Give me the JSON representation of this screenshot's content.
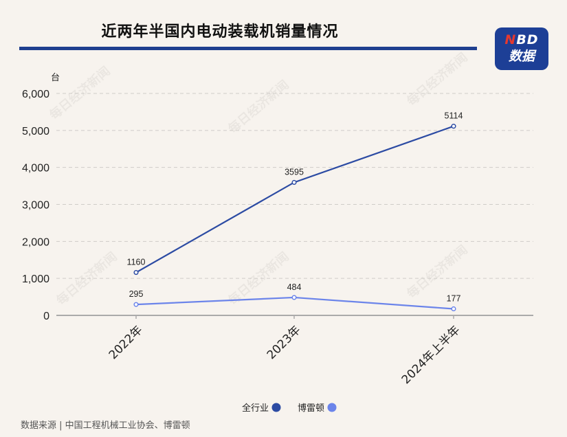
{
  "header": {
    "title": "近两年半国内电动装载机销量情况"
  },
  "badge": {
    "letter_n": "N",
    "letters_bd": "BD",
    "line2": "数据"
  },
  "watermark": "每日经济新闻",
  "source": "数据来源 | 中国工程机械工业协会、博雷顿",
  "colors": {
    "background": "#f7f3ee",
    "title_rule": "#1f3f8f",
    "badge": "#1d3f96",
    "series_industry": "#2c4ba3",
    "series_breton": "#6b84ea"
  },
  "chart_data": {
    "type": "line",
    "categories": [
      "2022年",
      "2023年",
      "2024年上半年"
    ],
    "series": [
      {
        "name": "全行业",
        "values": [
          1160,
          3595,
          5114
        ],
        "color": "#2c4ba3",
        "labels": [
          "1160",
          "3595",
          "5114"
        ]
      },
      {
        "name": "博雷顿",
        "values": [
          295,
          484,
          177
        ],
        "color": "#6b84ea",
        "labels": [
          "295",
          "484",
          "177"
        ]
      }
    ],
    "ylabel": "台",
    "ylim": [
      0,
      6000
    ],
    "yticks": [
      0,
      1000,
      2000,
      3000,
      4000,
      5000,
      6000
    ],
    "ytick_labels": [
      "0",
      "1,000",
      "2,000",
      "3,000",
      "4,000",
      "5,000",
      "6,000"
    ],
    "grid": true,
    "legend_position": "bottom-center"
  }
}
